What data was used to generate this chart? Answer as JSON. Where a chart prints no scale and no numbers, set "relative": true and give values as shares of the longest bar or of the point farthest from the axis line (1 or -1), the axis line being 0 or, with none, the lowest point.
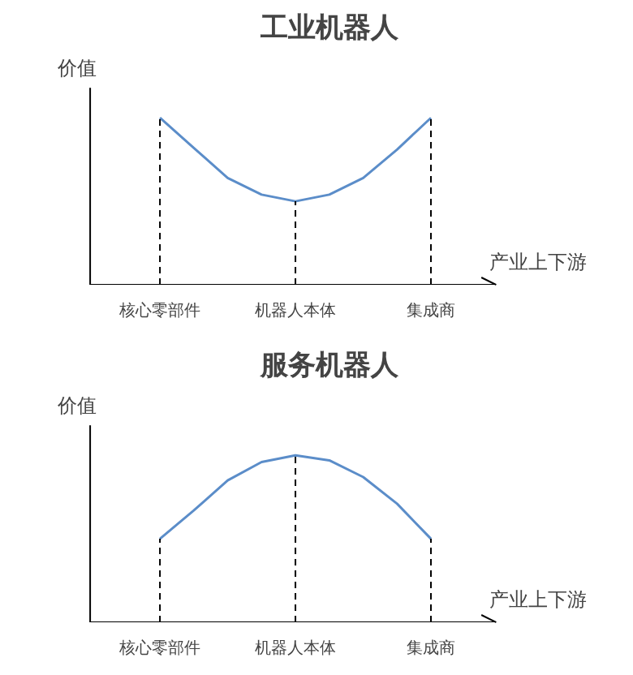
{
  "chart_data": [
    {
      "type": "line",
      "title": "工业机器人",
      "xlabel": "产业上下游",
      "ylabel": "价值",
      "relative": true,
      "color": "#5b8dc9",
      "categories": [
        "核心零部件",
        null,
        null,
        null,
        "机器人本体",
        null,
        null,
        null,
        "集成商"
      ],
      "values": [
        1,
        0.82,
        0.64,
        0.54,
        0.5,
        0.54,
        0.64,
        0.81,
        1
      ],
      "ref_lines": [
        {
          "axis": "x",
          "value": "核心零部件",
          "line_style": "dashed",
          "color": "#000000"
        },
        {
          "axis": "x",
          "value": "机器人本体",
          "line_style": "dashed",
          "color": "#000000"
        },
        {
          "axis": "x",
          "value": "集成商",
          "line_style": "dashed",
          "color": "#000000"
        }
      ]
    },
    {
      "type": "line",
      "title": "服务机器人",
      "xlabel": "产业上下游",
      "ylabel": "价值",
      "relative": true,
      "color": "#5b8dc9",
      "categories": [
        "核心零部件",
        null,
        null,
        null,
        "机器人本体",
        null,
        null,
        null,
        "集成商"
      ],
      "values": [
        0.5,
        0.67,
        0.85,
        0.96,
        1,
        0.97,
        0.87,
        0.71,
        0.5
      ],
      "ref_lines": [
        {
          "axis": "x",
          "value": "核心零部件",
          "line_style": "dashed",
          "color": "#000000"
        },
        {
          "axis": "x",
          "value": "机器人本体",
          "line_style": "dashed",
          "color": "#000000"
        },
        {
          "axis": "x",
          "value": "集成商",
          "line_style": "dashed",
          "color": "#000000"
        }
      ]
    }
  ]
}
